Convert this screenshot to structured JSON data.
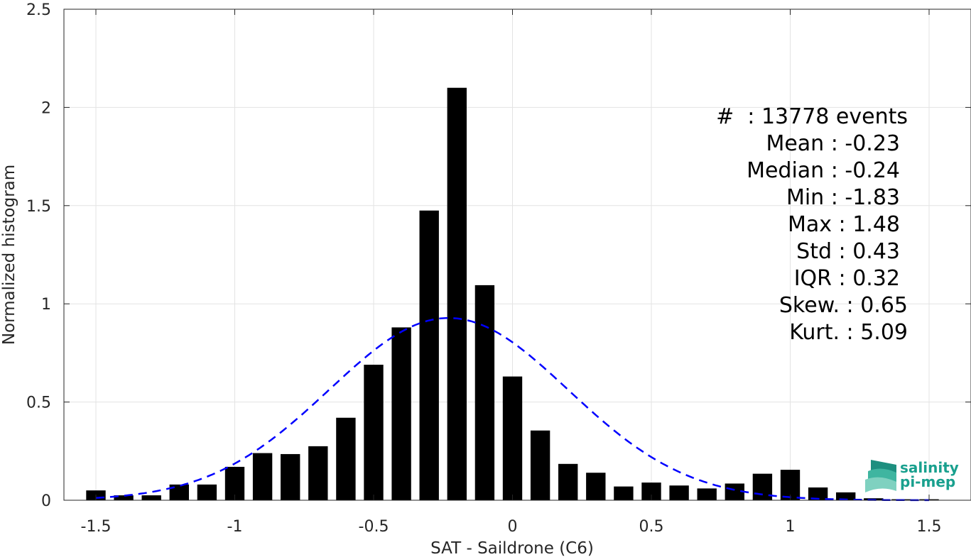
{
  "chart_data": {
    "type": "bar",
    "xlabel": "SAT - Saildrone (C6)",
    "ylabel": "Normalized histogram",
    "xlim": [
      -1.55,
      1.55
    ],
    "ylim": [
      0,
      2.5
    ],
    "xticks": [
      -1.5,
      -1,
      -0.5,
      0,
      0.5,
      1,
      1.5
    ],
    "xtick_labels": [
      "-1.5",
      "-1",
      "-0.5",
      "0",
      "0.5",
      "1",
      "1.5"
    ],
    "yticks": [
      0,
      0.5,
      1,
      1.5,
      2,
      2.5
    ],
    "ytick_labels": [
      "0",
      "0.5",
      "1",
      "1.5",
      "2",
      "2.5"
    ],
    "grid": true,
    "bar_color": "#000000",
    "bin_width": 0.1,
    "bins": [
      -1.5,
      -1.4,
      -1.3,
      -1.2,
      -1.1,
      -1.0,
      -0.9,
      -0.8,
      -0.7,
      -0.6,
      -0.5,
      -0.4,
      -0.3,
      -0.2,
      -0.1,
      0.0,
      0.1,
      0.2,
      0.3,
      0.4,
      0.5,
      0.6,
      0.7,
      0.8,
      0.9,
      1.0,
      1.1,
      1.2,
      1.3,
      1.4,
      1.5
    ],
    "values": [
      0.05,
      0.025,
      0.025,
      0.08,
      0.08,
      0.17,
      0.24,
      0.235,
      0.275,
      0.42,
      0.69,
      0.88,
      1.475,
      2.1,
      1.095,
      0.63,
      0.355,
      0.185,
      0.14,
      0.07,
      0.09,
      0.075,
      0.06,
      0.085,
      0.135,
      0.155,
      0.065,
      0.04,
      0.01,
      0.005,
      0.005
    ],
    "fit": {
      "type": "normal",
      "mean": -0.23,
      "std": 0.43,
      "color": "#0000ff",
      "style": "dashed"
    },
    "stats": [
      "#  : 13778 events",
      "Mean : -0.23",
      "Median : -0.24",
      "Min : -1.83",
      "Max : 1.48",
      "Std : 0.43",
      "IQR : 0.32",
      "Skew. : 0.65",
      "Kurt. : 5.09"
    ]
  },
  "logo": {
    "line1": "salinity",
    "line2": "pi-mep",
    "color": "#19a08e"
  }
}
